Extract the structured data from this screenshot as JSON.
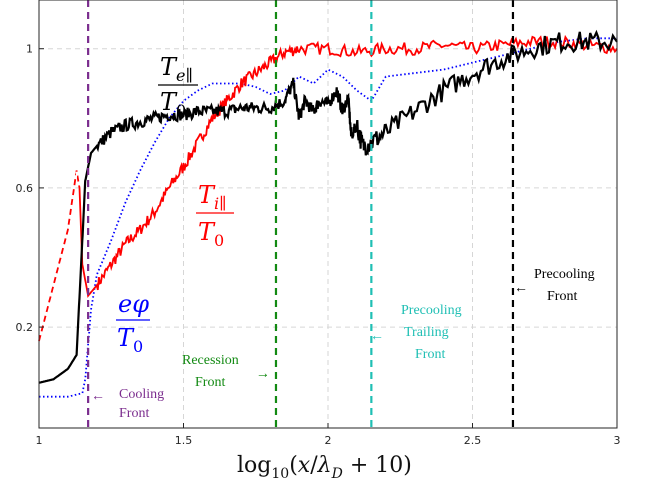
{
  "chart_data": {
    "type": "line",
    "xlabel": "log10(x/λD + 10)",
    "xlim": [
      1,
      3
    ],
    "ylim": [
      -0.09,
      1.14
    ],
    "xticks": [
      1,
      1.5,
      2,
      2.5,
      3
    ],
    "xtick_labels": [
      "1",
      "1.5",
      "2",
      "2.5",
      "3"
    ],
    "yticks": [
      0.2,
      0.6,
      1
    ],
    "ytick_labels": [
      "0.2",
      "0.6",
      "1"
    ],
    "grid": true,
    "series": [
      {
        "name": "Te∥/T0",
        "color": "#000000",
        "style": "solid",
        "x": [
          1.0,
          1.05,
          1.1,
          1.13,
          1.15,
          1.16,
          1.18,
          1.2,
          1.25,
          1.3,
          1.35,
          1.4,
          1.45,
          1.5,
          1.55,
          1.6,
          1.65,
          1.7,
          1.75,
          1.8,
          1.85,
          1.88,
          1.9,
          1.92,
          1.95,
          1.97,
          2.0,
          2.03,
          2.05,
          2.07,
          2.08,
          2.1,
          2.12,
          2.15,
          2.2,
          2.3,
          2.4,
          2.5,
          2.6,
          2.7,
          2.8,
          2.9,
          3.0
        ],
        "y": [
          0.04,
          0.05,
          0.08,
          0.12,
          0.45,
          0.62,
          0.7,
          0.72,
          0.76,
          0.78,
          0.79,
          0.8,
          0.81,
          0.81,
          0.82,
          0.82,
          0.82,
          0.83,
          0.83,
          0.83,
          0.85,
          0.9,
          0.8,
          0.85,
          0.82,
          0.85,
          0.84,
          0.88,
          0.82,
          0.86,
          0.75,
          0.78,
          0.72,
          0.73,
          0.76,
          0.82,
          0.88,
          0.93,
          0.97,
          1.0,
          1.02,
          1.02,
          1.02
        ]
      },
      {
        "name": "Ti∥/T0",
        "color": "#ff0000",
        "style": "dashed-then-solid",
        "x": [
          1.0,
          1.05,
          1.1,
          1.13,
          1.14,
          1.15,
          1.17,
          1.2,
          1.25,
          1.3,
          1.35,
          1.4,
          1.45,
          1.5,
          1.55,
          1.6,
          1.65,
          1.7,
          1.75,
          1.8,
          1.85,
          1.9,
          2.0,
          2.1,
          2.2,
          2.3,
          2.4,
          2.5,
          2.6,
          2.7,
          2.8,
          2.9,
          3.0
        ],
        "y": [
          0.16,
          0.32,
          0.48,
          0.65,
          0.6,
          0.38,
          0.29,
          0.32,
          0.38,
          0.44,
          0.48,
          0.53,
          0.6,
          0.66,
          0.73,
          0.8,
          0.85,
          0.9,
          0.93,
          0.96,
          0.99,
          1.0,
          1.0,
          0.99,
          1.0,
          1.0,
          1.01,
          1.0,
          1.01,
          1.02,
          1.02,
          1.01,
          1.0
        ]
      },
      {
        "name": "eφ/T0",
        "color": "#0000ff",
        "style": "dotted",
        "x": [
          1.0,
          1.05,
          1.1,
          1.15,
          1.16,
          1.18,
          1.2,
          1.25,
          1.3,
          1.35,
          1.4,
          1.45,
          1.5,
          1.55,
          1.6,
          1.65,
          1.7,
          1.75,
          1.8,
          1.85,
          1.9,
          1.95,
          2.0,
          2.05,
          2.1,
          2.15,
          2.2,
          2.3,
          2.4,
          2.5,
          2.6,
          2.7,
          2.8,
          2.9,
          3.0
        ],
        "y": [
          0.0,
          0.0,
          0.0,
          0.01,
          0.05,
          0.25,
          0.35,
          0.45,
          0.56,
          0.65,
          0.73,
          0.8,
          0.85,
          0.88,
          0.9,
          0.9,
          0.9,
          0.89,
          0.87,
          0.88,
          0.92,
          0.9,
          0.94,
          0.92,
          0.88,
          0.85,
          0.92,
          0.93,
          0.94,
          0.96,
          0.98,
          1.0,
          1.02,
          1.03,
          1.03
        ]
      }
    ],
    "vlines": [
      {
        "x": 1.17,
        "color": "#7b2d8e",
        "label": "Cooling Front"
      },
      {
        "x": 1.82,
        "color": "#138a13",
        "label": "Recession Front"
      },
      {
        "x": 2.15,
        "color": "#1fbfb4",
        "label": "Precooling Trailing Front"
      },
      {
        "x": 2.64,
        "color": "#000000",
        "label": "Precooling Front"
      }
    ],
    "curve_labels": {
      "te": {
        "num": "T",
        "sub": "e∥",
        "den": "T",
        "den_sub": "0"
      },
      "ti": {
        "num": "T",
        "sub": "i∥",
        "den": "T",
        "den_sub": "0"
      },
      "ephi": {
        "num": "eφ",
        "den": "T",
        "den_sub": "0"
      }
    },
    "annotations": {
      "cooling": [
        "Cooling",
        "Front"
      ],
      "recession": [
        "Recession",
        "Front"
      ],
      "trailing": [
        "Precooling",
        "Trailing",
        "Front"
      ],
      "precooling": [
        "Precooling",
        "Front"
      ]
    },
    "arrow_glyphs": {
      "left": "←"
    },
    "axis_label": {
      "log": "log",
      "sub10": "10",
      "open": "(",
      "x": "x",
      "slash": "/",
      "lambda": "λ",
      "subD": "D",
      "rest": " + 10)"
    }
  }
}
